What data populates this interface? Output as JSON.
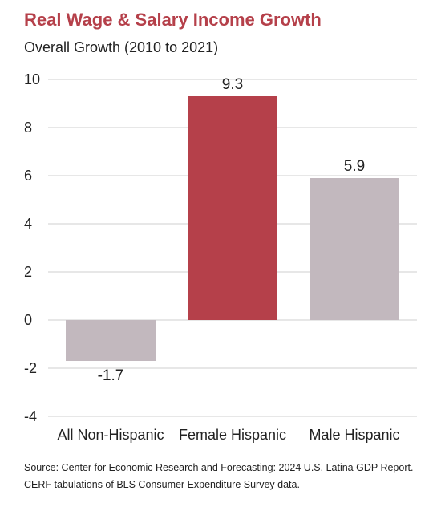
{
  "chart_data": {
    "type": "bar",
    "title": "Real Wage & Salary Income Growth",
    "subtitle": "Overall Growth (2010 to 2021)",
    "categories": [
      "All Non-Hispanic",
      "Female Hispanic",
      "Male Hispanic"
    ],
    "values": [
      -1.7,
      9.3,
      5.9
    ],
    "data_labels": [
      "-1.7",
      "9.3",
      "5.9"
    ],
    "colors": [
      "#c2b8be",
      "#b5404a",
      "#c2b8be"
    ],
    "ylim": [
      -4,
      10
    ],
    "yticks": [
      10,
      8,
      6,
      4,
      2,
      0,
      -2,
      -4
    ],
    "xlabel": "",
    "ylabel": "",
    "grid": true,
    "legend": "none"
  },
  "source": "Source: Center for Economic Research and Forecasting: 2024 U.S. Latina GDP Report. CERF tabulations of BLS Consumer Expenditure Survey data."
}
